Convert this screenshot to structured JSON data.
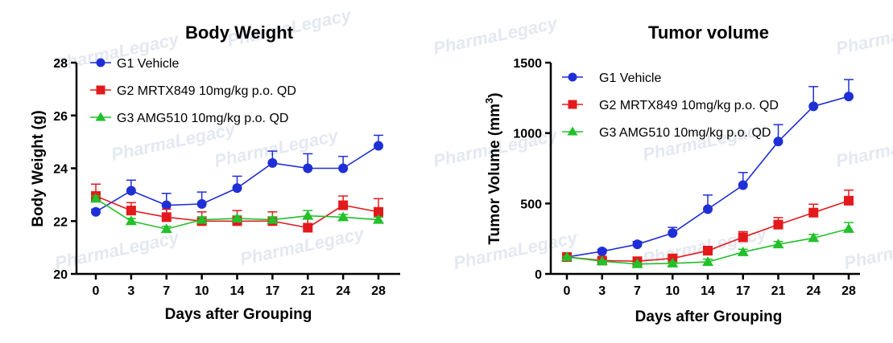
{
  "watermark": {
    "text": "PharmaLegacy",
    "color": "#cfd6e6"
  },
  "series_styles": [
    {
      "color": "#1f2fd6",
      "marker": "circle"
    },
    {
      "color": "#e31a1c",
      "marker": "square"
    },
    {
      "color": "#22c02a",
      "marker": "triangle"
    }
  ],
  "chart_data": [
    {
      "type": "line",
      "title": "Body Weight",
      "xlabel": "Days after Grouping",
      "ylabel": "Body Weight (g)",
      "ylim": [
        20,
        28
      ],
      "yticks": [
        20,
        22,
        24,
        26,
        28
      ],
      "categories": [
        "0",
        "3",
        "7",
        "10",
        "14",
        "17",
        "21",
        "24",
        "28"
      ],
      "legend_position": "top-right",
      "error_bars": "positive",
      "series": [
        {
          "name": "G1 Vehicle",
          "values": [
            22.35,
            23.15,
            22.6,
            22.65,
            23.25,
            24.2,
            24.0,
            24.0,
            24.85
          ],
          "errors": [
            0.1,
            0.4,
            0.45,
            0.45,
            0.45,
            0.45,
            0.55,
            0.45,
            0.4
          ]
        },
        {
          "name": "G2 MRTX849 10mg/kg p.o. QD",
          "values": [
            22.95,
            22.4,
            22.15,
            22.0,
            22.0,
            22.0,
            21.75,
            22.6,
            22.35
          ],
          "errors": [
            0.45,
            0.3,
            0.3,
            0.35,
            0.4,
            0.35,
            0.35,
            0.35,
            0.5
          ]
        },
        {
          "name": "G3 AMG510 10mg/kg p.o. QD",
          "values": [
            22.85,
            22.0,
            21.7,
            22.05,
            22.1,
            22.05,
            22.2,
            22.15,
            22.05
          ],
          "errors": [
            0.1,
            0.1,
            0.1,
            0.1,
            0.1,
            0.1,
            0.2,
            0.1,
            0.1
          ]
        }
      ]
    },
    {
      "type": "line",
      "title": "Tumor volume",
      "xlabel": "Days after Grouping",
      "ylabel_main": "Tumor Volume (mm",
      "ylabel_sup": "3",
      "ylabel_end": ")",
      "ylim": [
        0,
        1500
      ],
      "yticks": [
        0,
        500,
        1000,
        1500
      ],
      "categories": [
        "0",
        "3",
        "7",
        "10",
        "14",
        "17",
        "21",
        "24",
        "28"
      ],
      "legend_position": "top-left",
      "error_bars": "positive",
      "series": [
        {
          "name": "G1 Vehicle",
          "values": [
            120,
            160,
            210,
            290,
            460,
            630,
            940,
            1190,
            1260
          ],
          "errors": [
            10,
            15,
            20,
            40,
            100,
            90,
            120,
            140,
            120
          ]
        },
        {
          "name": "G2 MRTX849 10mg/kg p.o. QD",
          "values": [
            120,
            95,
            90,
            110,
            165,
            260,
            350,
            435,
            520
          ],
          "errors": [
            10,
            15,
            15,
            20,
            30,
            40,
            50,
            60,
            75
          ]
        },
        {
          "name": "G3 AMG510 10mg/kg p.o. QD",
          "values": [
            120,
            90,
            70,
            75,
            85,
            155,
            210,
            255,
            320
          ],
          "errors": [
            5,
            5,
            10,
            10,
            20,
            20,
            20,
            25,
            45
          ]
        }
      ]
    }
  ]
}
